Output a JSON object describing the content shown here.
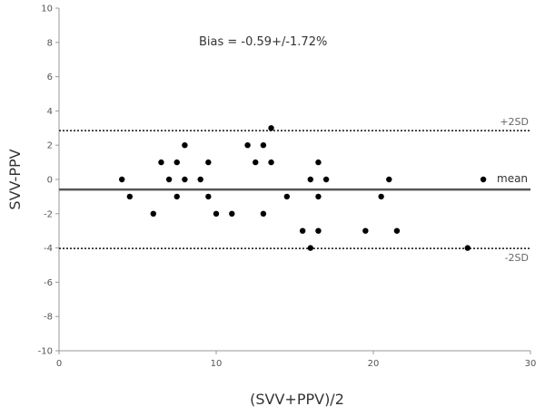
{
  "chart_data": {
    "type": "scatter",
    "xlabel": "(SVV+PPV)/2",
    "ylabel": "SVV-PPV",
    "xlim": [
      0,
      30
    ],
    "ylim": [
      -10,
      10
    ],
    "x_ticks": [
      0,
      10,
      20,
      30
    ],
    "y_ticks": [
      -10,
      -8,
      -6,
      -4,
      -2,
      0,
      2,
      4,
      6,
      8,
      10
    ],
    "grid": false,
    "annotation": "Bias = -0.59+/-1.72%",
    "reference_lines": [
      {
        "label": "+2SD",
        "y": 2.85,
        "style": "dotted"
      },
      {
        "label": "mean",
        "y": -0.59,
        "style": "solid"
      },
      {
        "label": "-2SD",
        "y": -4.03,
        "style": "dotted"
      }
    ],
    "points": [
      {
        "x": 4,
        "y": 0
      },
      {
        "x": 4.5,
        "y": -1
      },
      {
        "x": 6,
        "y": -2
      },
      {
        "x": 6.5,
        "y": 1
      },
      {
        "x": 7,
        "y": 0
      },
      {
        "x": 7.5,
        "y": 1
      },
      {
        "x": 7.5,
        "y": -1
      },
      {
        "x": 8,
        "y": 2
      },
      {
        "x": 8,
        "y": 0
      },
      {
        "x": 9,
        "y": 0
      },
      {
        "x": 9.5,
        "y": 1
      },
      {
        "x": 9.5,
        "y": -1
      },
      {
        "x": 10,
        "y": -2
      },
      {
        "x": 11,
        "y": -2
      },
      {
        "x": 12,
        "y": 2
      },
      {
        "x": 12.5,
        "y": 1
      },
      {
        "x": 13,
        "y": 2
      },
      {
        "x": 13,
        "y": -2
      },
      {
        "x": 13.5,
        "y": 3
      },
      {
        "x": 13.5,
        "y": 1
      },
      {
        "x": 14.5,
        "y": -1
      },
      {
        "x": 15.5,
        "y": -3
      },
      {
        "x": 16,
        "y": 0
      },
      {
        "x": 16,
        "y": -4
      },
      {
        "x": 16.5,
        "y": 1
      },
      {
        "x": 16.5,
        "y": -1
      },
      {
        "x": 16.5,
        "y": -3
      },
      {
        "x": 17,
        "y": 0
      },
      {
        "x": 19.5,
        "y": -3
      },
      {
        "x": 20.5,
        "y": -1
      },
      {
        "x": 21,
        "y": 0
      },
      {
        "x": 21.5,
        "y": -3
      },
      {
        "x": 26,
        "y": -4
      },
      {
        "x": 27,
        "y": 0
      }
    ]
  }
}
